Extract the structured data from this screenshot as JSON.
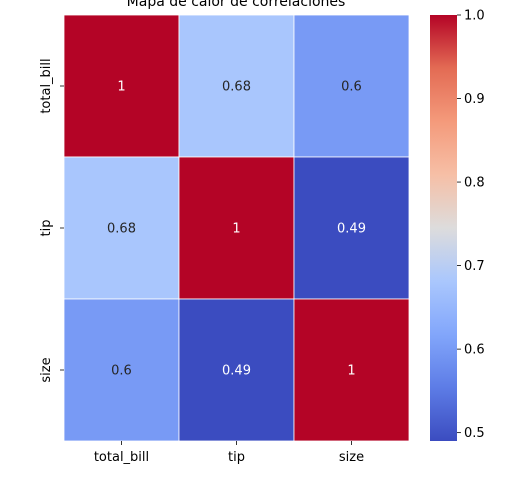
{
  "chart_data": {
    "type": "heatmap",
    "title": "Mapa de calor de correlaciones",
    "x_categories": [
      "total_bill",
      "tip",
      "size"
    ],
    "y_categories": [
      "total_bill",
      "tip",
      "size"
    ],
    "values": [
      [
        1.0,
        0.68,
        0.6
      ],
      [
        0.68,
        1.0,
        0.49
      ],
      [
        0.6,
        0.49,
        1.0
      ]
    ],
    "annotations": [
      [
        "1",
        "0.68",
        "0.6"
      ],
      [
        "0.68",
        "1",
        "0.49"
      ],
      [
        "0.6",
        "0.49",
        "1"
      ]
    ],
    "colormap": "coolwarm",
    "colorbar": {
      "range": [
        0.49,
        1.0
      ],
      "ticks": [
        0.5,
        0.6,
        0.7,
        0.8,
        0.9,
        1.0
      ],
      "tick_labels": [
        "0.5",
        "0.6",
        "0.7",
        "0.8",
        "0.9",
        "1.0"
      ]
    },
    "grid_line_color": "#ffffff"
  }
}
